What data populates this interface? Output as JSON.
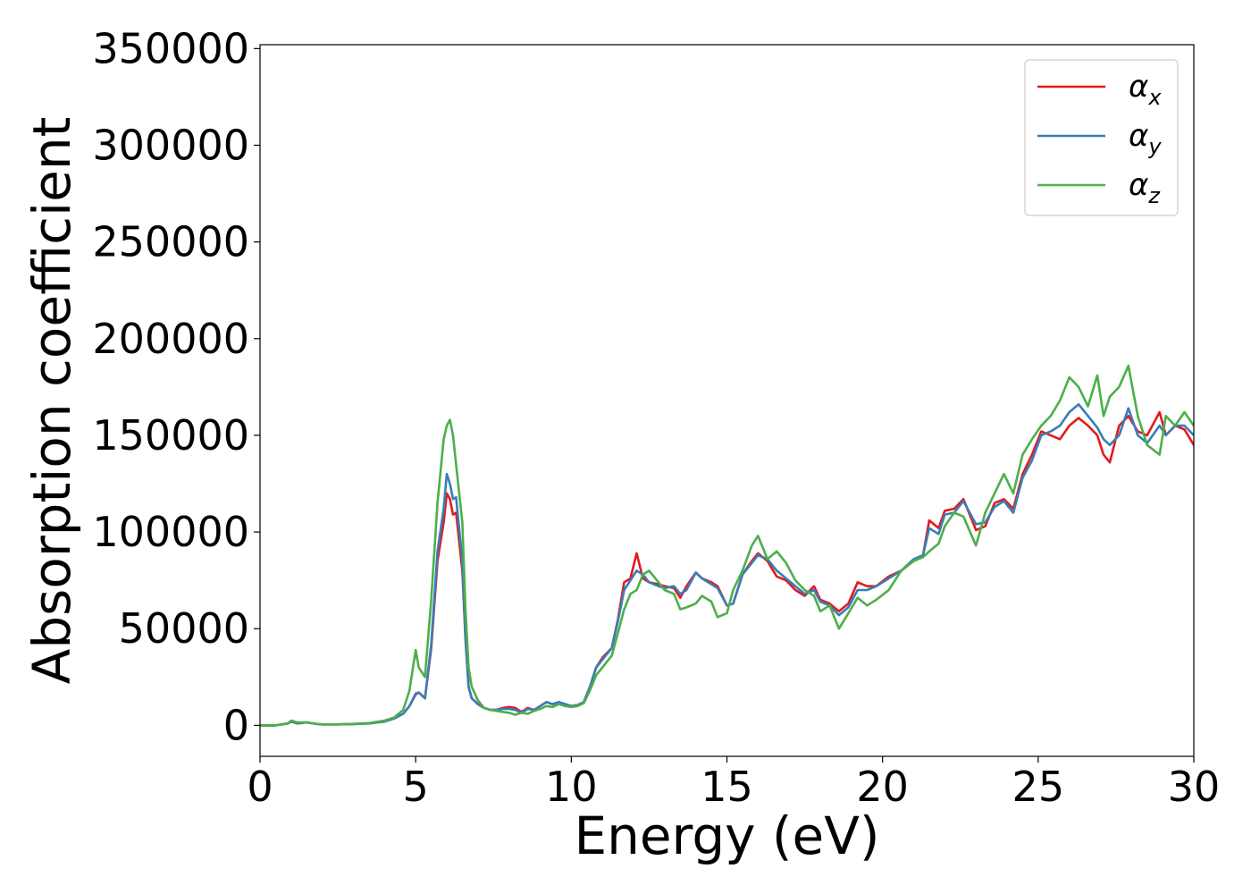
{
  "chart_data": {
    "type": "line",
    "title": "",
    "xlabel": "Energy (eV)",
    "ylabel": "Absorption coefficient",
    "xlim": [
      0,
      30
    ],
    "ylim": [
      -16000,
      352000
    ],
    "xticks": [
      0,
      5,
      10,
      15,
      20,
      25,
      30
    ],
    "yticks": [
      0,
      50000,
      100000,
      150000,
      200000,
      250000,
      300000,
      350000
    ],
    "xtick_labels": [
      "0",
      "5",
      "10",
      "15",
      "20",
      "25",
      "30"
    ],
    "ytick_labels": [
      "0",
      "50000",
      "100000",
      "150000",
      "200000",
      "250000",
      "300000",
      "350000"
    ],
    "grid": false,
    "legend_position": "top-right",
    "series": [
      {
        "name": "αx",
        "legend_base": "α",
        "legend_sub": "x",
        "color": "#e41a1c",
        "x": [
          0,
          0.5,
          0.9,
          1.0,
          1.2,
          1.5,
          1.8,
          2.0,
          2.5,
          3.0,
          3.5,
          4.0,
          4.3,
          4.6,
          4.8,
          5.0,
          5.1,
          5.3,
          5.5,
          5.7,
          5.9,
          6.0,
          6.1,
          6.2,
          6.3,
          6.5,
          6.6,
          6.7,
          6.8,
          7.0,
          7.2,
          7.4,
          7.6,
          7.8,
          8.0,
          8.2,
          8.4,
          8.6,
          8.8,
          9.0,
          9.2,
          9.4,
          9.6,
          9.8,
          10.0,
          10.2,
          10.4,
          10.6,
          10.8,
          11.0,
          11.3,
          11.5,
          11.7,
          11.9,
          12.1,
          12.3,
          12.5,
          12.8,
          13.0,
          13.3,
          13.5,
          13.7,
          14.0,
          14.2,
          14.5,
          14.7,
          15.0,
          15.2,
          15.5,
          15.8,
          16.0,
          16.3,
          16.6,
          16.9,
          17.2,
          17.5,
          17.8,
          18.0,
          18.3,
          18.6,
          18.9,
          19.2,
          19.5,
          19.8,
          20.2,
          20.6,
          21.0,
          21.3,
          21.5,
          21.8,
          22.0,
          22.3,
          22.6,
          23.0,
          23.3,
          23.6,
          23.9,
          24.2,
          24.5,
          24.8,
          25.1,
          25.4,
          25.7,
          26.0,
          26.3,
          26.6,
          26.9,
          27.1,
          27.3,
          27.6,
          27.9,
          28.2,
          28.5,
          28.9,
          29.1,
          29.4,
          29.7,
          30.0
        ],
        "y": [
          0,
          0,
          1000,
          2000,
          1000,
          1500,
          800,
          500,
          500,
          700,
          1000,
          2000,
          3500,
          6000,
          10000,
          16000,
          17000,
          14000,
          40000,
          85000,
          105000,
          120000,
          117000,
          109000,
          110000,
          80000,
          45000,
          20000,
          14000,
          11000,
          9000,
          8000,
          8000,
          9000,
          9500,
          9000,
          7000,
          9000,
          8000,
          10000,
          12000,
          11000,
          12000,
          11000,
          10000,
          10500,
          12000,
          20000,
          30000,
          35000,
          40000,
          55000,
          74000,
          76000,
          89000,
          76000,
          74000,
          73000,
          72000,
          71000,
          66000,
          72000,
          79000,
          76000,
          74000,
          72000,
          62000,
          63000,
          78000,
          85000,
          89000,
          85000,
          77000,
          75000,
          70000,
          67000,
          72000,
          65000,
          63000,
          59000,
          63000,
          74000,
          72000,
          72000,
          77000,
          80000,
          85000,
          88000,
          106000,
          102000,
          111000,
          112000,
          117000,
          101000,
          103000,
          115000,
          117000,
          112000,
          130000,
          140000,
          152000,
          150000,
          148000,
          155000,
          159000,
          155000,
          150000,
          140000,
          136000,
          155000,
          160000,
          152000,
          150000,
          162000,
          150000,
          155000,
          153000,
          145000
        ]
      },
      {
        "name": "αy",
        "legend_base": "α",
        "legend_sub": "y",
        "color": "#377eb8",
        "x": [
          0,
          0.5,
          0.9,
          1.0,
          1.2,
          1.5,
          1.8,
          2.0,
          2.5,
          3.0,
          3.5,
          4.0,
          4.3,
          4.6,
          4.8,
          5.0,
          5.1,
          5.3,
          5.5,
          5.7,
          5.9,
          6.0,
          6.1,
          6.2,
          6.3,
          6.5,
          6.6,
          6.7,
          6.8,
          7.0,
          7.2,
          7.4,
          7.6,
          7.8,
          8.0,
          8.2,
          8.4,
          8.6,
          8.8,
          9.0,
          9.2,
          9.4,
          9.6,
          9.8,
          10.0,
          10.2,
          10.4,
          10.6,
          10.8,
          11.0,
          11.3,
          11.5,
          11.7,
          11.9,
          12.1,
          12.3,
          12.5,
          12.8,
          13.0,
          13.3,
          13.5,
          13.7,
          14.0,
          14.2,
          14.5,
          14.7,
          15.0,
          15.2,
          15.5,
          15.8,
          16.0,
          16.3,
          16.6,
          16.9,
          17.2,
          17.5,
          17.8,
          18.0,
          18.3,
          18.6,
          18.9,
          19.2,
          19.5,
          19.8,
          20.2,
          20.6,
          21.0,
          21.3,
          21.5,
          21.8,
          22.0,
          22.3,
          22.6,
          23.0,
          23.3,
          23.6,
          23.9,
          24.2,
          24.5,
          24.8,
          25.1,
          25.4,
          25.7,
          26.0,
          26.3,
          26.6,
          26.9,
          27.1,
          27.3,
          27.6,
          27.9,
          28.2,
          28.5,
          28.9,
          29.1,
          29.4,
          29.7,
          30.0
        ],
        "y": [
          0,
          0,
          1000,
          2000,
          1000,
          1500,
          800,
          500,
          500,
          700,
          1000,
          2000,
          3500,
          6000,
          10000,
          16500,
          17000,
          14000,
          42000,
          90000,
          112000,
          130000,
          125000,
          117000,
          118000,
          85000,
          45000,
          20000,
          14000,
          11000,
          9000,
          8000,
          8000,
          8500,
          8500,
          8000,
          6500,
          8500,
          8000,
          10000,
          12000,
          11000,
          12000,
          11000,
          10000,
          10500,
          12000,
          20000,
          30000,
          34000,
          40000,
          54000,
          70000,
          75000,
          80000,
          78000,
          74000,
          72000,
          71000,
          72000,
          68000,
          70000,
          79000,
          76000,
          73000,
          71000,
          62000,
          63000,
          78000,
          84000,
          88000,
          86000,
          80000,
          76000,
          72000,
          68000,
          70000,
          64000,
          62000,
          57000,
          61000,
          70000,
          70000,
          72000,
          76000,
          80000,
          86000,
          88000,
          102000,
          99000,
          109000,
          110000,
          116000,
          104000,
          105000,
          113000,
          116000,
          110000,
          128000,
          137000,
          150000,
          152000,
          155000,
          162000,
          166000,
          160000,
          154000,
          148000,
          145000,
          150000,
          164000,
          150000,
          146000,
          155000,
          150000,
          155000,
          155000,
          150000
        ]
      },
      {
        "name": "αz",
        "legend_base": "α",
        "legend_sub": "z",
        "color": "#4daf4a",
        "x": [
          0,
          0.5,
          0.9,
          1.0,
          1.2,
          1.5,
          1.8,
          2.0,
          2.5,
          3.0,
          3.5,
          4.0,
          4.3,
          4.6,
          4.8,
          5.0,
          5.1,
          5.3,
          5.5,
          5.7,
          5.9,
          6.0,
          6.1,
          6.2,
          6.3,
          6.5,
          6.6,
          6.7,
          6.8,
          7.0,
          7.2,
          7.4,
          7.6,
          7.8,
          8.0,
          8.2,
          8.4,
          8.6,
          8.8,
          9.0,
          9.2,
          9.4,
          9.6,
          9.8,
          10.0,
          10.2,
          10.4,
          10.6,
          10.8,
          11.0,
          11.3,
          11.5,
          11.7,
          11.9,
          12.1,
          12.3,
          12.5,
          12.8,
          13.0,
          13.3,
          13.5,
          13.7,
          14.0,
          14.2,
          14.5,
          14.7,
          15.0,
          15.2,
          15.5,
          15.8,
          16.0,
          16.3,
          16.6,
          16.9,
          17.2,
          17.5,
          17.8,
          18.0,
          18.3,
          18.6,
          18.9,
          19.2,
          19.5,
          19.8,
          20.2,
          20.6,
          21.0,
          21.3,
          21.5,
          21.8,
          22.0,
          22.3,
          22.6,
          23.0,
          23.3,
          23.6,
          23.9,
          24.2,
          24.5,
          24.8,
          25.1,
          25.4,
          25.7,
          26.0,
          26.3,
          26.6,
          26.9,
          27.1,
          27.3,
          27.6,
          27.9,
          28.2,
          28.5,
          28.9,
          29.1,
          29.4,
          29.7,
          30.0
        ],
        "y": [
          0,
          0,
          1000,
          2500,
          1500,
          1500,
          800,
          500,
          500,
          800,
          1200,
          2500,
          4000,
          8000,
          18000,
          39000,
          30000,
          25000,
          65000,
          115000,
          148000,
          155000,
          158000,
          150000,
          135000,
          105000,
          60000,
          30000,
          20000,
          13000,
          9000,
          8000,
          7500,
          7000,
          6500,
          5500,
          6500,
          6000,
          7500,
          8500,
          10000,
          9500,
          11000,
          10000,
          9500,
          10000,
          11500,
          18000,
          26000,
          30000,
          36000,
          48000,
          60000,
          68000,
          70000,
          78000,
          80000,
          74000,
          70000,
          68000,
          60000,
          61000,
          63000,
          67000,
          64000,
          56000,
          58000,
          70000,
          80000,
          93000,
          98000,
          86000,
          90000,
          84000,
          75000,
          70000,
          67000,
          59000,
          62000,
          50000,
          58000,
          66000,
          62000,
          65000,
          70000,
          80000,
          85000,
          87000,
          90000,
          94000,
          103000,
          110000,
          108000,
          93000,
          110000,
          120000,
          130000,
          120000,
          140000,
          148000,
          155000,
          160000,
          168000,
          180000,
          175000,
          165000,
          181000,
          160000,
          170000,
          175000,
          186000,
          160000,
          145000,
          140000,
          160000,
          155000,
          162000,
          155000
        ]
      }
    ]
  }
}
